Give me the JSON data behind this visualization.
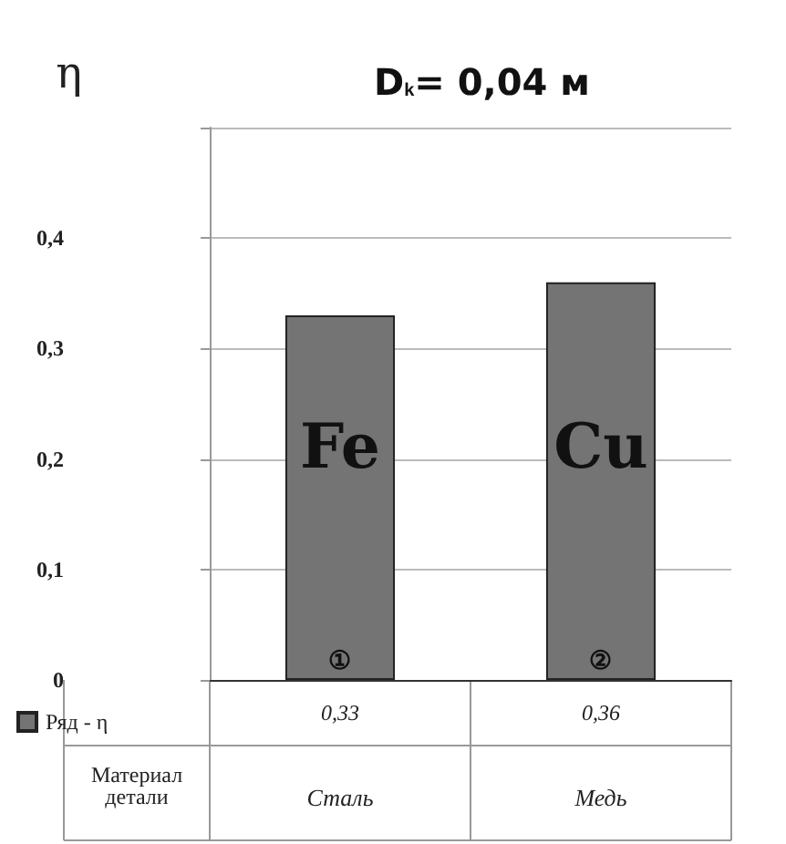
{
  "chart_data": {
    "type": "bar",
    "title": "D$_{k}$= 0,04 м",
    "ylabel": "η",
    "xlabel": "Материал детали",
    "categories": [
      "Сталь",
      "Медь"
    ],
    "series": [
      {
        "name": "Ряд - η",
        "color": "#747474",
        "values": [
          0.33,
          0.36
        ]
      }
    ],
    "ylim": [
      0,
      0.5
    ],
    "yticks": [
      {
        "value": 0,
        "label": "0"
      },
      {
        "value": 0.1,
        "label": "0,1"
      },
      {
        "value": 0.2,
        "label": "0,2"
      },
      {
        "value": 0.3,
        "label": "0,3"
      },
      {
        "value": 0.4,
        "label": "0,4"
      },
      {
        "value": 0.5,
        "label": null
      }
    ],
    "grid": "y",
    "value_labels": [
      "0,33",
      "0,36"
    ],
    "legend": "bottom left",
    "annotations": [
      "Fe",
      "Cu",
      "①",
      "②"
    ]
  }
}
